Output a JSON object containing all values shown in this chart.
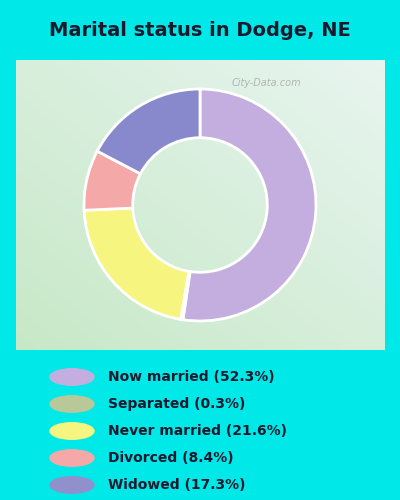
{
  "title": "Marital status in Dodge, NE",
  "slices": [
    52.3,
    0.3,
    21.6,
    8.4,
    17.3
  ],
  "labels": [
    "Now married (52.3%)",
    "Separated (0.3%)",
    "Never married (21.6%)",
    "Divorced (8.4%)",
    "Widowed (17.3%)"
  ],
  "colors": [
    "#c4aee0",
    "#c8ddb0",
    "#f5f580",
    "#f5a8a8",
    "#8888cc"
  ],
  "legend_colors": [
    "#c4aee0",
    "#b8c898",
    "#f5f580",
    "#f5a8a8",
    "#9090cc"
  ],
  "background_color": "#00e8e8",
  "title_fontsize": 14,
  "title_color": "#1a1a2e",
  "watermark": "City-Data.com",
  "donut_width": 0.42,
  "startangle": 90,
  "legend_fontsize": 10,
  "legend_text_color": "#1a1a2e"
}
